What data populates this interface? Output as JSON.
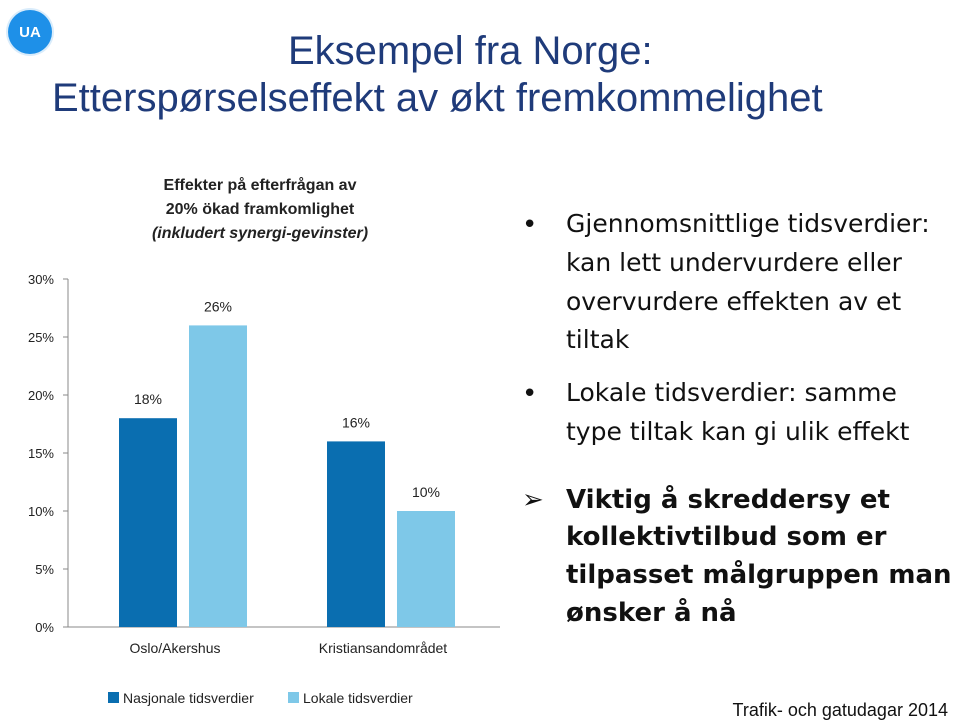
{
  "logo": {
    "text": "UA"
  },
  "slide": {
    "title_line1": "Eksempel fra Norge:",
    "title_line2": "Etterspørselseffekt av økt fremkommelighet"
  },
  "chart_data": {
    "type": "bar",
    "title_line1": "Effekter på efterfrågan av",
    "title_line2": "20% ökad framkomlighet",
    "title_line3": "(inkludert synergi-gevinster)",
    "categories": [
      "Oslo/Akershus",
      "Kristiansandområdet"
    ],
    "series": [
      {
        "name": "Nasjonale tidsverdier",
        "values": [
          18,
          16
        ],
        "labels": [
          "18%",
          "16%"
        ],
        "color": "#0a6eb0"
      },
      {
        "name": "Lokale tidsverdier",
        "values": [
          26,
          10
        ],
        "labels": [
          "26%",
          "10%"
        ],
        "color": "#7ec8e8"
      }
    ],
    "ylim": [
      0,
      30
    ],
    "yticks": [
      0,
      5,
      10,
      15,
      20,
      25,
      30
    ],
    "ytick_labels": [
      "0%",
      "5%",
      "10%",
      "15%",
      "20%",
      "25%",
      "30%"
    ],
    "grid": false,
    "legend_position": "bottom"
  },
  "bullets": [
    {
      "text": "Gjennomsnittlige tidsverdier: kan lett undervurdere eller overvurdere effekten av et tiltak"
    },
    {
      "text": "Lokale tidsverdier: samme type tiltak kan gi ulik effekt"
    }
  ],
  "callout": {
    "text": "Viktig å skreddersy et kollektivtilbud som er tilpasset målgruppen man ønsker å nå"
  },
  "footer": {
    "text": "Trafik- och gatudagar 2014"
  }
}
